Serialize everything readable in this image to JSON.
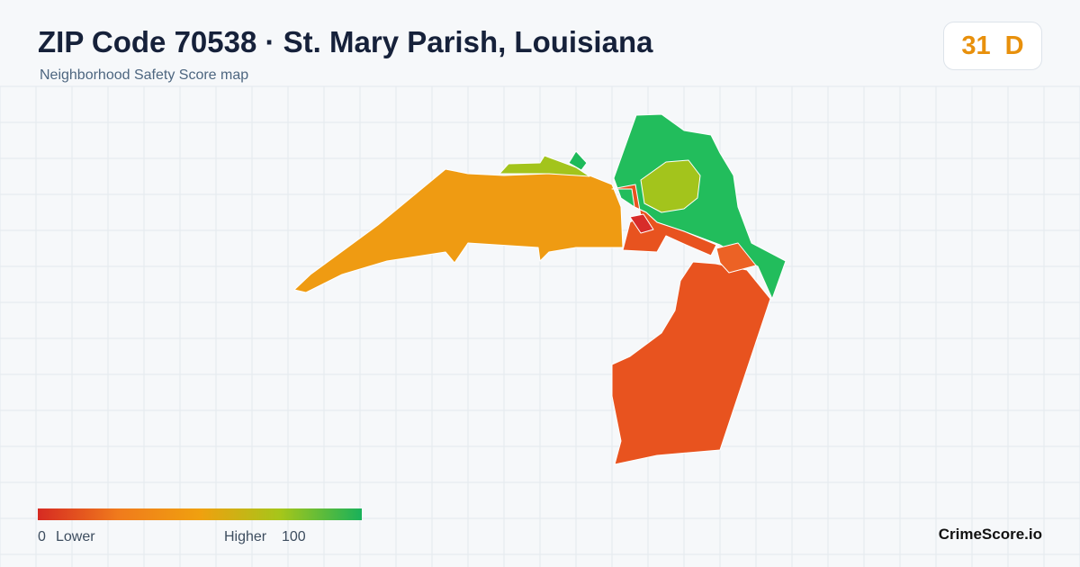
{
  "header": {
    "title": "ZIP Code 70538 · St. Mary Parish, Louisiana",
    "subtitle": "Neighborhood Safety Score map"
  },
  "score": {
    "value": 31,
    "grade": "D"
  },
  "legend": {
    "min": 0,
    "min_label": "Lower",
    "max_label": "Higher",
    "max": 100
  },
  "brand": "CrimeScore.io"
}
